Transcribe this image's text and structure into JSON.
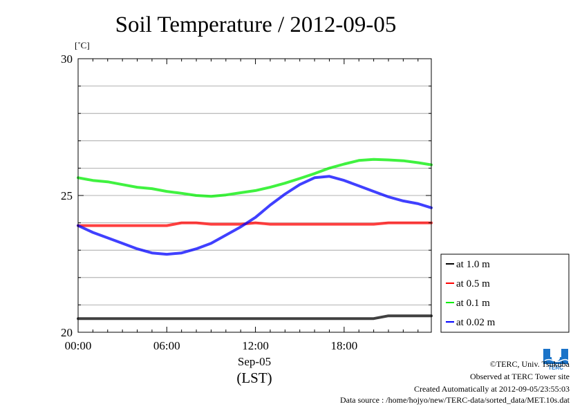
{
  "chart_data": {
    "type": "line",
    "title": "Soil Temperature / 2012-09-05",
    "y_unit_label": "[˚C]",
    "ylim": [
      20,
      30
    ],
    "y_ticks": [
      20,
      25,
      30
    ],
    "y_tick_labels": [
      "20",
      "25",
      "30"
    ],
    "xlim": [
      0,
      23.9
    ],
    "x_ticks": [
      0,
      6,
      12,
      18
    ],
    "x_tick_labels": [
      "00:00",
      "06:00",
      "12:00",
      "18:00"
    ],
    "x_date_label": "Sep-05",
    "x_timezone_label": "(LST)",
    "legend_position": "right-outside",
    "series": [
      {
        "name": "at 1.0 m",
        "color": "#000000",
        "x": [
          0,
          1,
          2,
          3,
          4,
          5,
          6,
          7,
          8,
          9,
          10,
          11,
          12,
          13,
          14,
          15,
          16,
          17,
          18,
          19,
          20,
          21,
          22,
          23,
          23.9
        ],
        "y": [
          20.5,
          20.5,
          20.5,
          20.5,
          20.5,
          20.5,
          20.5,
          20.5,
          20.5,
          20.5,
          20.5,
          20.5,
          20.5,
          20.5,
          20.5,
          20.5,
          20.5,
          20.5,
          20.5,
          20.5,
          20.5,
          20.6,
          20.6,
          20.6,
          20.6
        ]
      },
      {
        "name": "at 0.5 m",
        "color": "#ff0000",
        "x": [
          0,
          1,
          2,
          3,
          4,
          5,
          6,
          7,
          8,
          9,
          10,
          11,
          12,
          13,
          14,
          15,
          16,
          17,
          18,
          19,
          20,
          21,
          22,
          23,
          23.9
        ],
        "y": [
          23.9,
          23.9,
          23.9,
          23.9,
          23.9,
          23.9,
          23.9,
          24.0,
          24.0,
          23.95,
          23.95,
          23.95,
          24.0,
          23.95,
          23.95,
          23.95,
          23.95,
          23.95,
          23.95,
          23.95,
          23.95,
          24.0,
          24.0,
          24.0,
          24.0
        ]
      },
      {
        "name": "at 0.1 m",
        "color": "#00ee00",
        "x": [
          0,
          1,
          2,
          3,
          4,
          5,
          6,
          7,
          8,
          9,
          10,
          11,
          12,
          13,
          14,
          15,
          16,
          17,
          18,
          19,
          20,
          21,
          22,
          23,
          23.9
        ],
        "y": [
          25.65,
          25.55,
          25.5,
          25.4,
          25.3,
          25.25,
          25.15,
          25.08,
          25.0,
          24.97,
          25.02,
          25.1,
          25.18,
          25.3,
          25.45,
          25.62,
          25.8,
          26.0,
          26.15,
          26.28,
          26.32,
          26.3,
          26.27,
          26.2,
          26.12
        ]
      },
      {
        "name": "at 0.02 m",
        "color": "#0000ff",
        "x": [
          0,
          1,
          2,
          3,
          4,
          5,
          6,
          7,
          8,
          9,
          10,
          11,
          12,
          13,
          14,
          15,
          16,
          17,
          18,
          19,
          20,
          21,
          22,
          23,
          23.9
        ],
        "y": [
          23.9,
          23.65,
          23.45,
          23.25,
          23.05,
          22.9,
          22.85,
          22.9,
          23.05,
          23.25,
          23.55,
          23.85,
          24.2,
          24.65,
          25.05,
          25.4,
          25.65,
          25.7,
          25.55,
          25.35,
          25.15,
          24.95,
          24.8,
          24.7,
          24.55
        ]
      }
    ]
  },
  "footer": {
    "copyright": "©TERC, Univ. Tsukuba",
    "site": "Observed at TERC Tower site",
    "created": "Created Automatically at 2012-09-05/23:55:03",
    "source": "Data source : /home/hojyo/new/TERC-data/sorted_data/MET.10s.dat",
    "logo_text": "TERC"
  },
  "colors": {
    "grid": "#999999",
    "logo": "#1a73c8"
  }
}
